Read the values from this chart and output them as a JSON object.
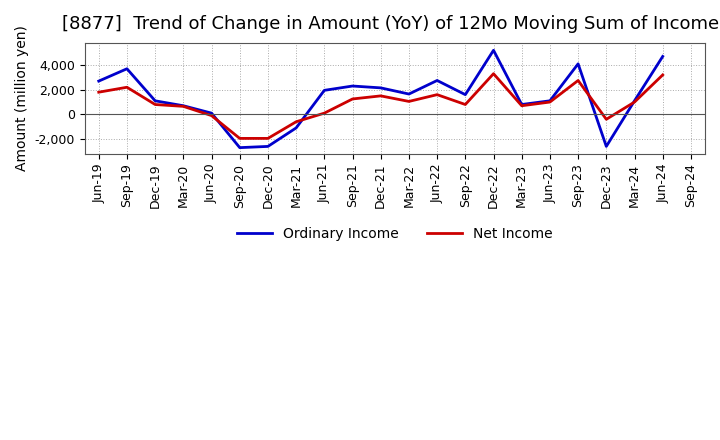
{
  "title": "[8877]  Trend of Change in Amount (YoY) of 12Mo Moving Sum of Incomes",
  "ylabel": "Amount (million yen)",
  "x_labels": [
    "Jun-19",
    "Sep-19",
    "Dec-19",
    "Mar-20",
    "Jun-20",
    "Sep-20",
    "Dec-20",
    "Mar-21",
    "Jun-21",
    "Sep-21",
    "Dec-21",
    "Mar-22",
    "Jun-22",
    "Sep-22",
    "Dec-22",
    "Mar-23",
    "Jun-23",
    "Sep-23",
    "Dec-23",
    "Mar-24",
    "Jun-24",
    "Sep-24"
  ],
  "ordinary_income": [
    2700,
    3700,
    1100,
    700,
    100,
    -2700,
    -2600,
    -1100,
    1950,
    2300,
    2150,
    1650,
    2750,
    1600,
    5200,
    800,
    1100,
    4100,
    -2600,
    1100,
    4700,
    null
  ],
  "net_income": [
    1800,
    2200,
    800,
    650,
    -100,
    -1950,
    -1950,
    -600,
    100,
    1250,
    1500,
    1050,
    1600,
    800,
    3300,
    700,
    1000,
    2750,
    -400,
    1000,
    3200,
    null
  ],
  "ordinary_income_color": "#0000cc",
  "net_income_color": "#cc0000",
  "background_color": "#ffffff",
  "grid_color": "#aaaaaa",
  "ylim": [
    -3200,
    5800
  ],
  "yticks": [
    -2000,
    0,
    2000,
    4000
  ],
  "legend_ordinary": "Ordinary Income",
  "legend_net": "Net Income",
  "title_fontsize": 13,
  "axis_fontsize": 10,
  "tick_fontsize": 9
}
